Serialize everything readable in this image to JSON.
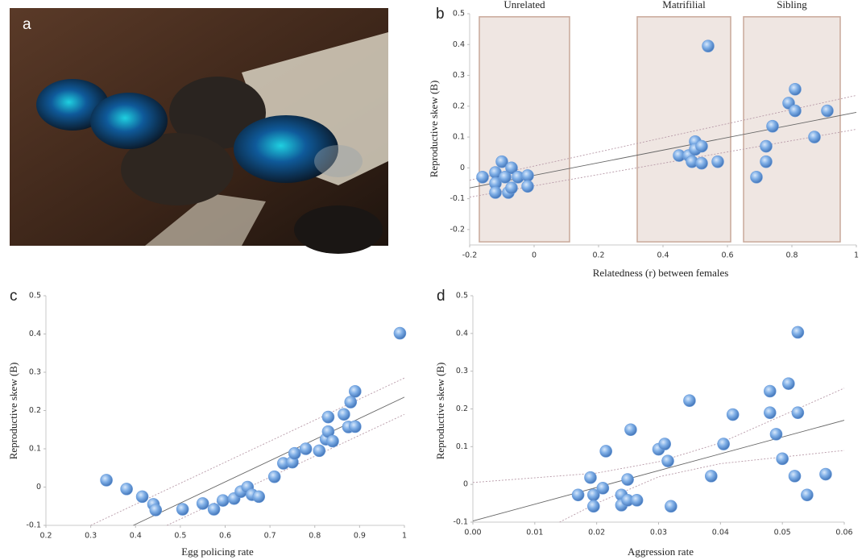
{
  "image": {
    "label": "a"
  },
  "chart_data": [
    {
      "type": "scatter",
      "panel_label": "b",
      "x_label": "Relatedness (r) between females",
      "y_label": "Reproductive skew (B)",
      "color": "#6f9fdc",
      "xlim": [
        -0.2,
        1
      ],
      "ylim": [
        -0.25,
        0.5
      ],
      "xticks": [
        -0.2,
        0,
        0.2,
        0.4,
        0.6,
        0.8,
        1
      ],
      "yticks": [
        -0.2,
        -0.1,
        0,
        0.1,
        0.2,
        0.3,
        0.4,
        0.5
      ],
      "regions": [
        {
          "label": "Unrelated",
          "x": [
            -0.17,
            0.11
          ],
          "y": [
            -0.24,
            0.49
          ]
        },
        {
          "label": "Matrifilial",
          "x": [
            0.32,
            0.61
          ],
          "y": [
            -0.24,
            0.49
          ]
        },
        {
          "label": "Sibling",
          "x": [
            0.65,
            0.95
          ],
          "y": [
            -0.24,
            0.49
          ]
        }
      ],
      "x": [
        -0.16,
        -0.12,
        -0.1,
        -0.12,
        -0.09,
        -0.07,
        -0.05,
        -0.02,
        -0.12,
        -0.08,
        -0.07,
        -0.02,
        0.45,
        0.48,
        0.5,
        0.5,
        0.52,
        0.49,
        0.52,
        0.57,
        0.54,
        0.69,
        0.72,
        0.72,
        0.74,
        0.79,
        0.81,
        0.81,
        0.87,
        0.91
      ],
      "values": [
        -0.03,
        -0.015,
        0.02,
        -0.05,
        -0.03,
        0,
        -0.03,
        -0.025,
        -0.08,
        -0.08,
        -0.065,
        -0.06,
        0.04,
        0.04,
        0.085,
        0.06,
        0.07,
        0.02,
        0.015,
        0.02,
        0.395,
        -0.03,
        0.02,
        0.07,
        0.135,
        0.21,
        0.255,
        0.185,
        0.1,
        0.185
      ],
      "fit_lines": [
        {
          "style": "fit",
          "x": [
            -0.2,
            1
          ],
          "values": [
            -0.065,
            0.18
          ]
        },
        {
          "style": "ci",
          "x": [
            -0.2,
            1
          ],
          "values": [
            -0.04,
            0.235
          ]
        },
        {
          "style": "ci",
          "x": [
            -0.2,
            1
          ],
          "values": [
            -0.095,
            0.125
          ]
        }
      ]
    },
    {
      "type": "scatter",
      "panel_label": "c",
      "x_label": "Egg  policing rate",
      "y_label": "Reproductive skew (B)",
      "color": "#6f9fdc",
      "xlim": [
        0.2,
        1
      ],
      "ylim": [
        -0.1,
        0.5
      ],
      "xticks": [
        0.2,
        0.3,
        0.4,
        0.5,
        0.6,
        0.7,
        0.8,
        0.9,
        1
      ],
      "yticks": [
        -0.1,
        0,
        0.1,
        0.2,
        0.3,
        0.4,
        0.5
      ],
      "x": [
        0.335,
        0.38,
        0.415,
        0.44,
        0.445,
        0.505,
        0.55,
        0.575,
        0.595,
        0.62,
        0.635,
        0.65,
        0.66,
        0.675,
        0.71,
        0.73,
        0.75,
        0.755,
        0.78,
        0.81,
        0.825,
        0.83,
        0.83,
        0.84,
        0.865,
        0.875,
        0.88,
        0.89,
        0.89,
        0.99
      ],
      "values": [
        0.018,
        -0.005,
        -0.025,
        -0.045,
        -0.06,
        -0.058,
        -0.043,
        -0.058,
        -0.035,
        -0.03,
        -0.012,
        0,
        -0.02,
        -0.025,
        0.027,
        0.062,
        0.065,
        0.088,
        0.1,
        0.095,
        0.125,
        0.145,
        0.183,
        0.12,
        0.19,
        0.157,
        0.222,
        0.158,
        0.25,
        0.402
      ],
      "fit_lines": [
        {
          "style": "fit",
          "x": [
            0.395,
            1
          ],
          "values": [
            -0.1,
            0.235
          ]
        },
        {
          "style": "ci",
          "x": [
            0.3,
            1
          ],
          "values": [
            -0.1,
            0.285
          ]
        },
        {
          "style": "ci",
          "x": [
            0.47,
            1
          ],
          "values": [
            -0.1,
            0.19
          ]
        }
      ]
    },
    {
      "type": "scatter",
      "panel_label": "d",
      "x_label": "Aggression rate",
      "y_label": "Reproductive skew (B)",
      "color": "#6f9fdc",
      "xlim": [
        0,
        0.06
      ],
      "ylim": [
        -0.1,
        0.5
      ],
      "xticks": [
        {
          "value": 0,
          "label": "0.00"
        },
        0.01,
        0.02,
        0.03,
        0.04,
        0.05,
        0.06
      ],
      "yticks": [
        -0.1,
        0,
        0.1,
        0.2,
        0.3,
        0.4,
        0.5
      ],
      "x": [
        0.017,
        0.019,
        0.0195,
        0.0195,
        0.021,
        0.0215,
        0.024,
        0.024,
        0.025,
        0.025,
        0.0255,
        0.0265,
        0.03,
        0.031,
        0.0315,
        0.032,
        0.035,
        0.0385,
        0.0405,
        0.042,
        0.048,
        0.048,
        0.049,
        0.05,
        0.051,
        0.052,
        0.0525,
        0.0525,
        0.054,
        0.057
      ],
      "values": [
        -0.028,
        0.018,
        -0.028,
        -0.058,
        -0.01,
        0.088,
        -0.028,
        -0.055,
        -0.042,
        0.013,
        0.145,
        -0.042,
        0.093,
        0.107,
        0.062,
        -0.058,
        0.222,
        0.022,
        0.107,
        0.185,
        0.247,
        0.19,
        0.133,
        0.068,
        0.267,
        0.022,
        0.403,
        0.19,
        -0.028,
        0.027
      ],
      "fit_lines": [
        {
          "style": "fit",
          "x": [
            0,
            0.06
          ],
          "values": [
            -0.097,
            0.17
          ]
        },
        {
          "style": "ci",
          "x": [
            0,
            0.02,
            0.03,
            0.04,
            0.06
          ],
          "values": [
            0.005,
            0.03,
            0.06,
            0.11,
            0.255
          ]
        },
        {
          "style": "ci",
          "x": [
            0.014,
            0.02,
            0.03,
            0.04,
            0.06
          ],
          "values": [
            -0.1,
            -0.05,
            0.02,
            0.055,
            0.09
          ]
        }
      ]
    }
  ]
}
